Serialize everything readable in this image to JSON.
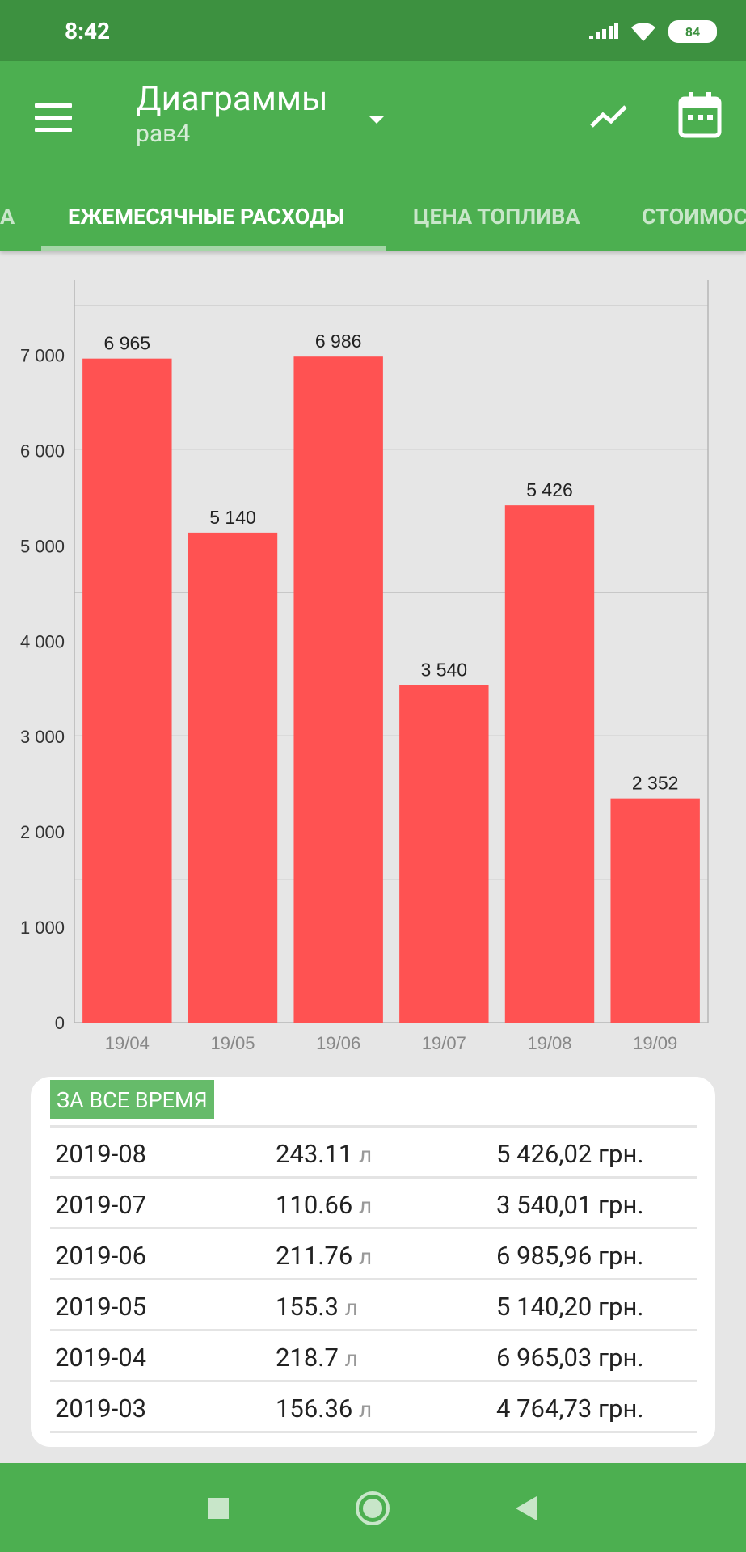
{
  "status": {
    "time": "8:42",
    "battery": "84"
  },
  "app": {
    "title": "Диаграммы",
    "subtitle": "рав4"
  },
  "tabs": [
    {
      "label": "А"
    },
    {
      "label": "ЕЖЕМЕСЯЧНЫЕ РАСХОДЫ"
    },
    {
      "label": "ЦЕНА ТОПЛИВА"
    },
    {
      "label": "СТОИМОС"
    }
  ],
  "chart_data": {
    "type": "bar",
    "categories": [
      "19/04",
      "19/05",
      "19/06",
      "19/07",
      "19/08",
      "19/09"
    ],
    "values": [
      6965,
      5140,
      6986,
      3540,
      5426,
      2352
    ],
    "value_labels": [
      "6 965",
      "5 140",
      "6 986",
      "3 540",
      "5 426",
      "2 352"
    ],
    "yticks": [
      0,
      1000,
      2000,
      3000,
      4000,
      5000,
      6000,
      7000
    ],
    "ytick_labels": [
      "0",
      "1 000",
      "2 000",
      "3 000",
      "4 000",
      "5 000",
      "6 000",
      "7 000"
    ],
    "ylim": [
      0,
      7700
    ],
    "bar_color": "#ff5252",
    "grid": true
  },
  "summary": {
    "label": "ЗА ВСЕ ВРЕМЯ",
    "rows": [
      {
        "month": "2019-08",
        "liters": "243.11",
        "unit": "л",
        "cost": "5 426,02 грн."
      },
      {
        "month": "2019-07",
        "liters": "110.66",
        "unit": "л",
        "cost": "3 540,01 грн."
      },
      {
        "month": "2019-06",
        "liters": "211.76",
        "unit": "л",
        "cost": "6 985,96 грн."
      },
      {
        "month": "2019-05",
        "liters": "155.3",
        "unit": "л",
        "cost": "5 140,20 грн."
      },
      {
        "month": "2019-04",
        "liters": "218.7",
        "unit": "л",
        "cost": "6 965,03 грн."
      },
      {
        "month": "2019-03",
        "liters": "156.36",
        "unit": "л",
        "cost": "4 764,73 грн."
      }
    ]
  },
  "colors": {
    "primary": "#4caf50",
    "status_bar": "#3d9140",
    "bar": "#ff5252",
    "label_bg": "#66bb6a"
  }
}
